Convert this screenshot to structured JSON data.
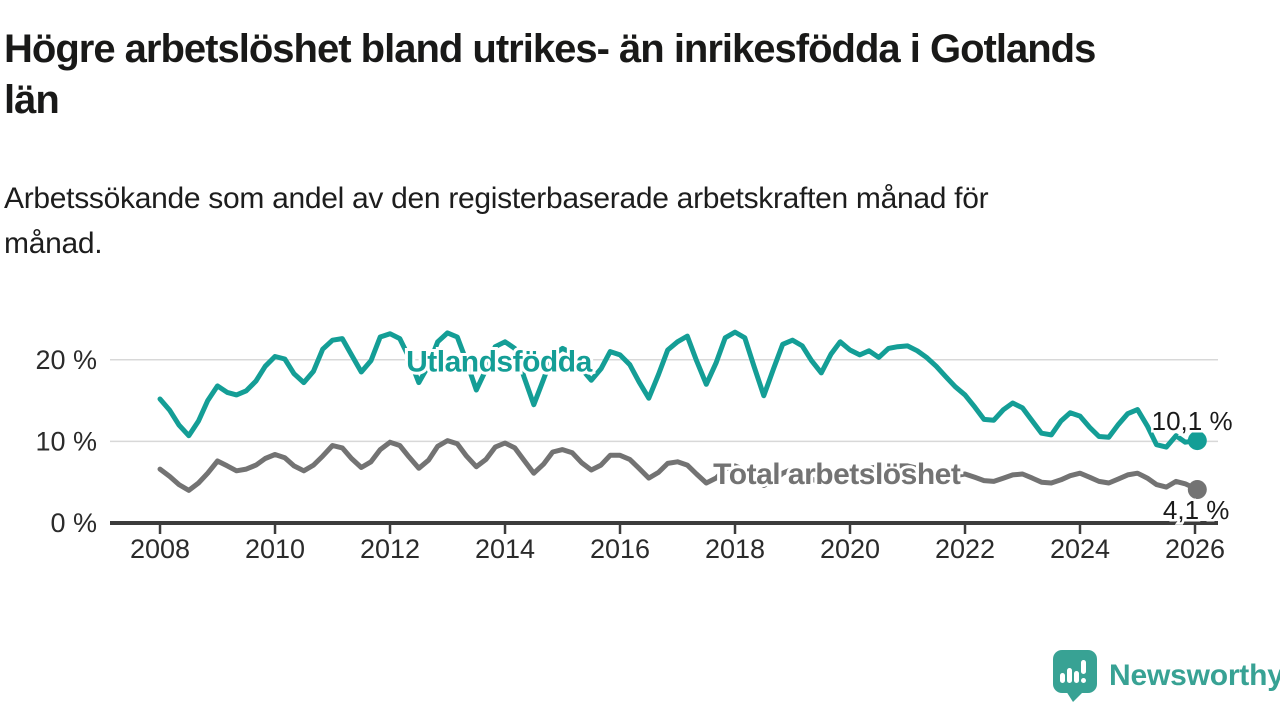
{
  "header": {
    "title": "Högre arbetslöshet bland utrikes- än inrikesfödda i Gotlands län",
    "title_lines": [
      "Högre arbetslöshet bland utrikes- än inrikesfödda i Gotlands",
      "län"
    ],
    "subtitle": "Arbetssökande som andel av den registerbaserade arbetskraften månad för månad.",
    "subtitle_lines": [
      "Arbetssökande som andel av den registerbaserade arbetskraften månad för",
      "månad."
    ]
  },
  "footer": {
    "brand": "Newsworthy"
  },
  "colors": {
    "foreign_born_line": "#149e96",
    "total_line": "#737373",
    "grid": "#d8d8d8",
    "axis": "#3c3c3c",
    "tick_text": "#2b2b2b",
    "value_label_text": "#1a1a1a",
    "brand_teal": "#38a294",
    "background": "#ffffff"
  },
  "chart_data": {
    "type": "line",
    "title": "Högre arbetslöshet bland utrikes- än inrikesfödda i Gotlands län",
    "subtitle": "Arbetssökande som andel av den registerbaserade arbetskraften månad för månad.",
    "xlabel": "",
    "ylabel": "",
    "unit": "%",
    "grid": "horizontal",
    "legend_position": "inline-labels",
    "xlim": [
      2007.13,
      2026.4
    ],
    "ylim": [
      0,
      25
    ],
    "yticks": [
      {
        "value": 0,
        "label": "0 %"
      },
      {
        "value": 10,
        "label": "10 %"
      },
      {
        "value": 20,
        "label": "20 %"
      }
    ],
    "xticks": [
      {
        "value": 2008,
        "label": "2008"
      },
      {
        "value": 2010,
        "label": "2010"
      },
      {
        "value": 2012,
        "label": "2012"
      },
      {
        "value": 2014,
        "label": "2014"
      },
      {
        "value": 2016,
        "label": "2016"
      },
      {
        "value": 2018,
        "label": "2018"
      },
      {
        "value": 2020,
        "label": "2020"
      },
      {
        "value": 2022,
        "label": "2022"
      },
      {
        "value": 2024,
        "label": "2024"
      },
      {
        "value": 2026,
        "label": "2026"
      }
    ],
    "series": [
      {
        "id": "utlandsfodda",
        "name": "Utlandsfödda",
        "color": "#149e96",
        "inline_label": {
          "text": "Utlandsfödda",
          "x": 2012.28,
          "y": 18.55
        },
        "end_label": {
          "text": "10,1 %",
          "x": 2025.95,
          "y": 11.4
        },
        "end_value": "10,1 %",
        "points": [
          [
            2008.0,
            15.2
          ],
          [
            2008.17,
            13.8
          ],
          [
            2008.33,
            12.0
          ],
          [
            2008.5,
            10.7
          ],
          [
            2008.67,
            12.5
          ],
          [
            2008.83,
            15.0
          ],
          [
            2009.0,
            16.8
          ],
          [
            2009.17,
            16.0
          ],
          [
            2009.33,
            15.7
          ],
          [
            2009.5,
            16.2
          ],
          [
            2009.67,
            17.4
          ],
          [
            2009.83,
            19.2
          ],
          [
            2010.0,
            20.4
          ],
          [
            2010.17,
            20.1
          ],
          [
            2010.33,
            18.3
          ],
          [
            2010.5,
            17.2
          ],
          [
            2010.67,
            18.6
          ],
          [
            2010.83,
            21.3
          ],
          [
            2011.0,
            22.4
          ],
          [
            2011.17,
            22.6
          ],
          [
            2011.33,
            20.6
          ],
          [
            2011.5,
            18.5
          ],
          [
            2011.67,
            19.9
          ],
          [
            2011.83,
            22.8
          ],
          [
            2012.0,
            23.2
          ],
          [
            2012.17,
            22.6
          ],
          [
            2012.33,
            20.3
          ],
          [
            2012.5,
            17.2
          ],
          [
            2012.67,
            19.3
          ],
          [
            2012.83,
            22.2
          ],
          [
            2013.0,
            23.3
          ],
          [
            2013.17,
            22.8
          ],
          [
            2013.33,
            19.8
          ],
          [
            2013.5,
            16.3
          ],
          [
            2013.67,
            18.8
          ],
          [
            2013.83,
            21.6
          ],
          [
            2014.0,
            22.2
          ],
          [
            2014.17,
            21.4
          ],
          [
            2014.33,
            17.9
          ],
          [
            2014.5,
            14.5
          ],
          [
            2014.67,
            17.6
          ],
          [
            2014.83,
            20.6
          ],
          [
            2015.0,
            21.4
          ],
          [
            2015.17,
            20.8
          ],
          [
            2015.33,
            18.9
          ],
          [
            2015.5,
            17.5
          ],
          [
            2015.67,
            18.9
          ],
          [
            2015.83,
            21.0
          ],
          [
            2016.0,
            20.6
          ],
          [
            2016.17,
            19.4
          ],
          [
            2016.33,
            17.3
          ],
          [
            2016.5,
            15.3
          ],
          [
            2016.67,
            18.2
          ],
          [
            2016.83,
            21.2
          ],
          [
            2017.0,
            22.2
          ],
          [
            2017.17,
            22.9
          ],
          [
            2017.33,
            19.9
          ],
          [
            2017.5,
            17.0
          ],
          [
            2017.67,
            19.6
          ],
          [
            2017.83,
            22.7
          ],
          [
            2018.0,
            23.4
          ],
          [
            2018.17,
            22.7
          ],
          [
            2018.33,
            19.2
          ],
          [
            2018.5,
            15.6
          ],
          [
            2018.67,
            18.9
          ],
          [
            2018.83,
            21.9
          ],
          [
            2019.0,
            22.4
          ],
          [
            2019.17,
            21.7
          ],
          [
            2019.33,
            19.9
          ],
          [
            2019.5,
            18.4
          ],
          [
            2019.67,
            20.7
          ],
          [
            2019.83,
            22.2
          ],
          [
            2020.0,
            21.2
          ],
          [
            2020.17,
            20.6
          ],
          [
            2020.33,
            21.1
          ],
          [
            2020.5,
            20.3
          ],
          [
            2020.67,
            21.4
          ],
          [
            2020.83,
            21.6
          ],
          [
            2021.0,
            21.7
          ],
          [
            2021.17,
            21.1
          ],
          [
            2021.33,
            20.3
          ],
          [
            2021.5,
            19.2
          ],
          [
            2021.67,
            17.9
          ],
          [
            2021.83,
            16.7
          ],
          [
            2022.0,
            15.7
          ],
          [
            2022.17,
            14.2
          ],
          [
            2022.33,
            12.7
          ],
          [
            2022.5,
            12.6
          ],
          [
            2022.67,
            13.9
          ],
          [
            2022.83,
            14.7
          ],
          [
            2023.0,
            14.1
          ],
          [
            2023.17,
            12.5
          ],
          [
            2023.33,
            11.0
          ],
          [
            2023.5,
            10.8
          ],
          [
            2023.67,
            12.5
          ],
          [
            2023.83,
            13.5
          ],
          [
            2024.0,
            13.1
          ],
          [
            2024.17,
            11.7
          ],
          [
            2024.33,
            10.6
          ],
          [
            2024.5,
            10.5
          ],
          [
            2024.67,
            12.1
          ],
          [
            2024.83,
            13.4
          ],
          [
            2025.0,
            13.9
          ],
          [
            2025.17,
            11.9
          ],
          [
            2025.33,
            9.6
          ],
          [
            2025.5,
            9.3
          ],
          [
            2025.67,
            10.7
          ],
          [
            2025.83,
            9.9
          ],
          [
            2026.04,
            10.1
          ]
        ]
      },
      {
        "id": "total",
        "name": "Total arbetslöshet",
        "color": "#737373",
        "inline_label": {
          "text": "Total arbetslöshet",
          "x": 2017.62,
          "y": 4.75
        },
        "end_label": {
          "text": "4,1 %",
          "x": 2026.02,
          "y": 0.5
        },
        "end_value": "4,1 %",
        "points": [
          [
            2008.0,
            6.6
          ],
          [
            2008.17,
            5.7
          ],
          [
            2008.33,
            4.7
          ],
          [
            2008.5,
            4.0
          ],
          [
            2008.67,
            4.9
          ],
          [
            2008.83,
            6.1
          ],
          [
            2009.0,
            7.6
          ],
          [
            2009.17,
            7.0
          ],
          [
            2009.33,
            6.4
          ],
          [
            2009.5,
            6.6
          ],
          [
            2009.67,
            7.1
          ],
          [
            2009.83,
            7.9
          ],
          [
            2010.0,
            8.4
          ],
          [
            2010.17,
            8.0
          ],
          [
            2010.33,
            7.0
          ],
          [
            2010.5,
            6.4
          ],
          [
            2010.67,
            7.1
          ],
          [
            2010.83,
            8.2
          ],
          [
            2011.0,
            9.5
          ],
          [
            2011.17,
            9.2
          ],
          [
            2011.33,
            7.9
          ],
          [
            2011.5,
            6.8
          ],
          [
            2011.67,
            7.5
          ],
          [
            2011.83,
            9.0
          ],
          [
            2012.0,
            9.9
          ],
          [
            2012.17,
            9.5
          ],
          [
            2012.33,
            8.1
          ],
          [
            2012.5,
            6.7
          ],
          [
            2012.67,
            7.7
          ],
          [
            2012.83,
            9.4
          ],
          [
            2013.0,
            10.1
          ],
          [
            2013.17,
            9.7
          ],
          [
            2013.33,
            8.2
          ],
          [
            2013.5,
            6.9
          ],
          [
            2013.67,
            7.8
          ],
          [
            2013.83,
            9.3
          ],
          [
            2014.0,
            9.8
          ],
          [
            2014.17,
            9.2
          ],
          [
            2014.33,
            7.7
          ],
          [
            2014.5,
            6.1
          ],
          [
            2014.67,
            7.2
          ],
          [
            2014.83,
            8.7
          ],
          [
            2015.0,
            9.0
          ],
          [
            2015.17,
            8.6
          ],
          [
            2015.33,
            7.4
          ],
          [
            2015.5,
            6.5
          ],
          [
            2015.67,
            7.1
          ],
          [
            2015.83,
            8.3
          ],
          [
            2016.0,
            8.3
          ],
          [
            2016.17,
            7.8
          ],
          [
            2016.33,
            6.7
          ],
          [
            2016.5,
            5.5
          ],
          [
            2016.67,
            6.2
          ],
          [
            2016.83,
            7.3
          ],
          [
            2017.0,
            7.5
          ],
          [
            2017.17,
            7.1
          ],
          [
            2017.33,
            6.0
          ],
          [
            2017.5,
            4.9
          ],
          [
            2017.67,
            5.5
          ],
          [
            2017.83,
            6.6
          ],
          [
            2018.0,
            7.0
          ],
          [
            2018.17,
            6.5
          ],
          [
            2018.33,
            5.4
          ],
          [
            2018.5,
            4.6
          ],
          [
            2018.67,
            5.2
          ],
          [
            2018.83,
            6.1
          ],
          [
            2019.0,
            6.6
          ],
          [
            2019.17,
            6.2
          ],
          [
            2019.33,
            5.4
          ],
          [
            2019.5,
            4.9
          ],
          [
            2019.67,
            5.3
          ],
          [
            2019.83,
            6.0
          ],
          [
            2020.0,
            6.3
          ],
          [
            2020.17,
            6.1
          ],
          [
            2020.33,
            6.7
          ],
          [
            2020.5,
            6.9
          ],
          [
            2020.67,
            7.1
          ],
          [
            2020.83,
            7.0
          ],
          [
            2021.0,
            7.0
          ],
          [
            2021.17,
            6.7
          ],
          [
            2021.33,
            6.2
          ],
          [
            2021.5,
            5.6
          ],
          [
            2021.67,
            5.3
          ],
          [
            2021.83,
            5.8
          ],
          [
            2022.0,
            6.0
          ],
          [
            2022.17,
            5.6
          ],
          [
            2022.33,
            5.2
          ],
          [
            2022.5,
            5.1
          ],
          [
            2022.67,
            5.5
          ],
          [
            2022.83,
            5.9
          ],
          [
            2023.0,
            6.0
          ],
          [
            2023.17,
            5.5
          ],
          [
            2023.33,
            5.0
          ],
          [
            2023.5,
            4.9
          ],
          [
            2023.67,
            5.3
          ],
          [
            2023.83,
            5.8
          ],
          [
            2024.0,
            6.1
          ],
          [
            2024.17,
            5.6
          ],
          [
            2024.33,
            5.1
          ],
          [
            2024.5,
            4.9
          ],
          [
            2024.67,
            5.4
          ],
          [
            2024.83,
            5.9
          ],
          [
            2025.0,
            6.1
          ],
          [
            2025.17,
            5.5
          ],
          [
            2025.33,
            4.7
          ],
          [
            2025.5,
            4.4
          ],
          [
            2025.67,
            5.1
          ],
          [
            2025.83,
            4.8
          ],
          [
            2026.04,
            4.1
          ]
        ]
      }
    ]
  }
}
